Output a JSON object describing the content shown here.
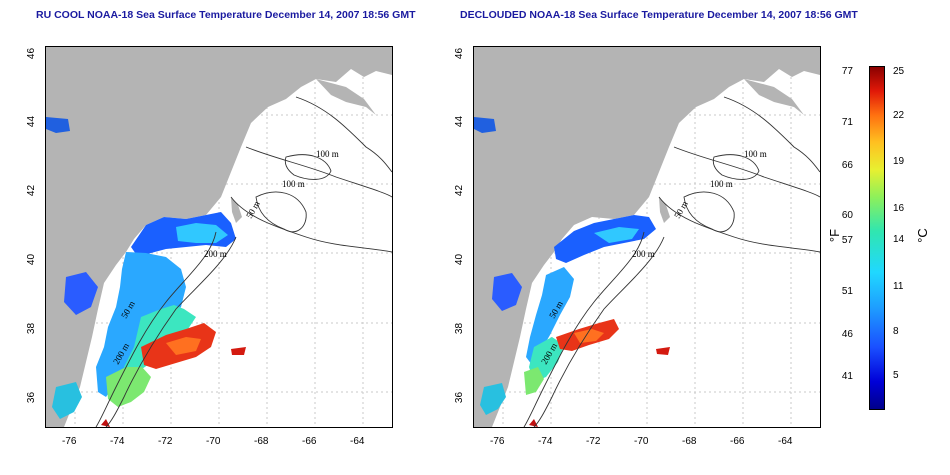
{
  "titles": {
    "left": "RU COOL NOAA-18 Sea Surface Temperature December 14, 2007 18:56 GMT",
    "right": "DECLOUDED NOAA-18 Sea Surface Temperature December 14, 2007 18:56 GMT"
  },
  "axes": {
    "x_ticks": [
      "-76",
      "-74",
      "-72",
      "-70",
      "-68",
      "-66",
      "-64"
    ],
    "y_ticks": [
      "46",
      "44",
      "42",
      "40",
      "38",
      "36"
    ],
    "lon_range": [
      -77.2,
      -62.8
    ],
    "lat_range": [
      35.0,
      46.0
    ]
  },
  "contour_labels": {
    "left": [
      "100 m",
      "100 m",
      "50 m",
      "200 m",
      "50 m",
      "200 m"
    ],
    "right": [
      "100 m",
      "100 m",
      "50 m",
      "200 m",
      "50 m",
      "200 m"
    ]
  },
  "colorbar": {
    "fahrenheit_label": "°F",
    "celsius_label": "°C",
    "fahrenheit_ticks": [
      "77",
      "71",
      "66",
      "60",
      "57",
      "51",
      "46",
      "41"
    ],
    "celsius_ticks": [
      "25",
      "22",
      "19",
      "16",
      "14",
      "11",
      "8",
      "5"
    ]
  },
  "colors": {
    "land": "#b4b4b4",
    "title": "#1a1aa0",
    "contour": "#333333",
    "grid": "#c8c8c8"
  }
}
